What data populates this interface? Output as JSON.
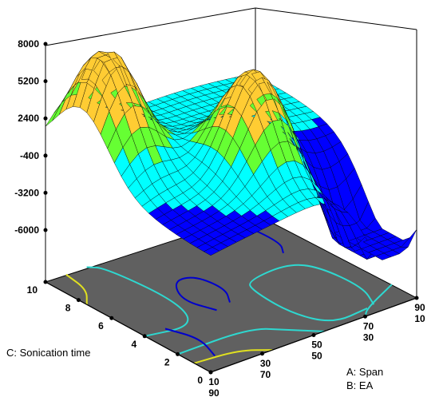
{
  "chart_data": {
    "type": "surface3d",
    "z_axis": {
      "ticks": [
        "8000",
        "5200",
        "2400",
        "-400",
        "-3200",
        "-6000"
      ],
      "range": [
        -6000,
        8000
      ]
    },
    "c_axis": {
      "title": "C: Sonication time",
      "ticks": [
        "10",
        "8",
        "6",
        "4",
        "2",
        "0"
      ],
      "range": [
        0,
        10
      ]
    },
    "ab_axis": {
      "title_a": "A: Span",
      "title_b": "B: EA",
      "ticks": [
        {
          "a": "10",
          "b": "90"
        },
        {
          "a": "30",
          "b": "70"
        },
        {
          "a": "50",
          "b": "50"
        },
        {
          "a": "70",
          "b": "30"
        },
        {
          "a": "90",
          "b": "10"
        }
      ]
    },
    "surface_color_scale": [
      "#0000ff",
      "#00ffff",
      "#66ff33",
      "#ffcc33"
    ],
    "floor_color": "#606060",
    "contours": [
      {
        "color": "#0000cc",
        "points": [
          [
            0.85,
            0.62
          ],
          [
            0.9,
            0.7
          ],
          [
            0.88,
            0.95
          ],
          [
            0.8,
            1.0
          ]
        ]
      },
      {
        "color": "#2ed8d0",
        "points": [
          [
            0.8,
            0.05
          ],
          [
            0.62,
            0.03
          ],
          [
            0.55,
            0.2
          ],
          [
            0.56,
            0.45
          ],
          [
            0.6,
            0.52
          ],
          [
            0.8,
            0.54
          ],
          [
            0.88,
            0.45
          ],
          [
            0.9,
            0.2
          ],
          [
            0.84,
            0.06
          ]
        ]
      },
      {
        "color": "#0000cc",
        "points": [
          [
            0.35,
            0.4
          ],
          [
            0.3,
            0.55
          ],
          [
            0.38,
            0.7
          ],
          [
            0.47,
            0.68
          ],
          [
            0.49,
            0.52
          ],
          [
            0.43,
            0.42
          ]
        ]
      },
      {
        "color": "#2ed8d0",
        "points": [
          [
            0.0,
            0.4
          ],
          [
            0.2,
            0.35
          ],
          [
            0.28,
            0.55
          ],
          [
            0.25,
            0.95
          ],
          [
            0.2,
            1.0
          ]
        ]
      },
      {
        "color": "#2ed8d0",
        "points": [
          [
            0.0,
            0.2
          ],
          [
            0.35,
            0.2
          ],
          [
            0.45,
            0.1
          ],
          [
            0.55,
            0.0
          ]
        ]
      },
      {
        "color": "#e0e020",
        "points": [
          [
            0.0,
            0.1
          ],
          [
            0.2,
            0.08
          ],
          [
            0.3,
            0.0
          ]
        ]
      },
      {
        "color": "#e0e020",
        "points": [
          [
            0.0,
            0.75
          ],
          [
            0.08,
            0.85
          ],
          [
            0.1,
            1.0
          ]
        ]
      },
      {
        "color": "#2ed8d0",
        "points": [
          [
            0.75,
            0.0
          ],
          [
            0.8,
            0.05
          ],
          [
            1.0,
            0.15
          ]
        ]
      },
      {
        "color": "#0000cc",
        "points": [
          [
            0.1,
            0.1
          ],
          [
            0.15,
            0.25
          ],
          [
            0.1,
            0.4
          ]
        ]
      }
    ]
  }
}
